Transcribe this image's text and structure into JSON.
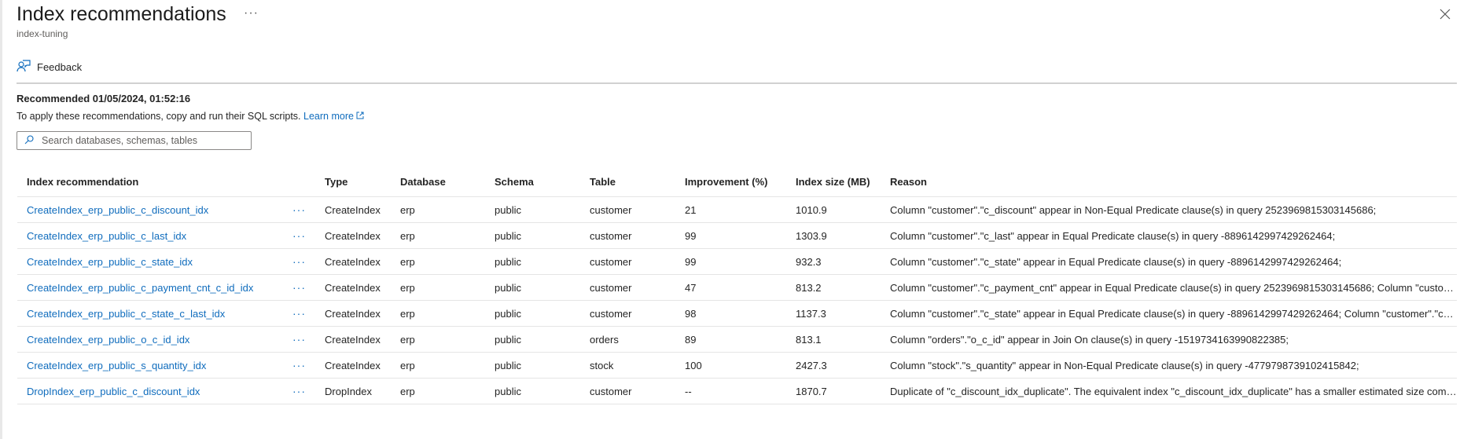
{
  "header": {
    "title": "Index recommendations",
    "more_label": "···",
    "subtitle": "index-tuning"
  },
  "toolbar": {
    "feedback_label": "Feedback"
  },
  "info": {
    "recommended": "Recommended 01/05/2024, 01:52:16",
    "apply_text": "To apply these recommendations, copy and run their SQL scripts.",
    "learn_more": "Learn more"
  },
  "search": {
    "placeholder": "Search databases, schemas, tables",
    "value": ""
  },
  "colors": {
    "accent": "#0f6cbd",
    "divider": "#d1d1d1"
  },
  "table": {
    "columns": [
      "Index recommendation",
      "",
      "Type",
      "Database",
      "Schema",
      "Table",
      "Improvement (%)",
      "Index size (MB)",
      "Reason"
    ],
    "row_menu_label": "···",
    "rows": [
      {
        "name": "CreateIndex_erp_public_c_discount_idx",
        "type": "CreateIndex",
        "database": "erp",
        "schema": "public",
        "table": "customer",
        "improvement": "21",
        "size": "1010.9",
        "reason": "Column \"customer\".\"c_discount\" appear in Non-Equal Predicate clause(s) in query 2523969815303145686;"
      },
      {
        "name": "CreateIndex_erp_public_c_last_idx",
        "type": "CreateIndex",
        "database": "erp",
        "schema": "public",
        "table": "customer",
        "improvement": "99",
        "size": "1303.9",
        "reason": "Column \"customer\".\"c_last\" appear in Equal Predicate clause(s) in query -8896142997429262464;"
      },
      {
        "name": "CreateIndex_erp_public_c_state_idx",
        "type": "CreateIndex",
        "database": "erp",
        "schema": "public",
        "table": "customer",
        "improvement": "99",
        "size": "932.3",
        "reason": "Column \"customer\".\"c_state\" appear in Equal Predicate clause(s) in query -8896142997429262464;"
      },
      {
        "name": "CreateIndex_erp_public_c_payment_cnt_c_id_idx",
        "type": "CreateIndex",
        "database": "erp",
        "schema": "public",
        "table": "customer",
        "improvement": "47",
        "size": "813.2",
        "reason": "Column \"customer\".\"c_payment_cnt\" appear in Equal Predicate clause(s) in query 2523969815303145686; Column \"custome..."
      },
      {
        "name": "CreateIndex_erp_public_c_state_c_last_idx",
        "type": "CreateIndex",
        "database": "erp",
        "schema": "public",
        "table": "customer",
        "improvement": "98",
        "size": "1137.3",
        "reason": "Column \"customer\".\"c_state\" appear in Equal Predicate clause(s) in query -8896142997429262464; Column \"customer\".\"c_la..."
      },
      {
        "name": "CreateIndex_erp_public_o_c_id_idx",
        "type": "CreateIndex",
        "database": "erp",
        "schema": "public",
        "table": "orders",
        "improvement": "89",
        "size": "813.1",
        "reason": "Column \"orders\".\"o_c_id\" appear in Join On clause(s) in query -1519734163990822385;"
      },
      {
        "name": "CreateIndex_erp_public_s_quantity_idx",
        "type": "CreateIndex",
        "database": "erp",
        "schema": "public",
        "table": "stock",
        "improvement": "100",
        "size": "2427.3",
        "reason": "Column \"stock\".\"s_quantity\" appear in Non-Equal Predicate clause(s) in query -4779798739102415842;"
      },
      {
        "name": "DropIndex_erp_public_c_discount_idx",
        "type": "DropIndex",
        "database": "erp",
        "schema": "public",
        "table": "customer",
        "improvement": "--",
        "size": "1870.7",
        "reason": "Duplicate of \"c_discount_idx_duplicate\". The equivalent index \"c_discount_idx_duplicate\" has a smaller estimated size compa..."
      }
    ]
  }
}
